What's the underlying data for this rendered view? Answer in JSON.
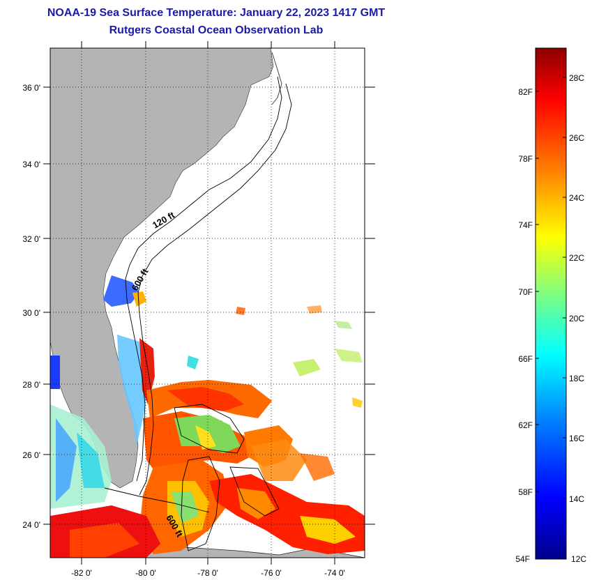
{
  "header": {
    "title": "NOAA-19 Sea Surface Temperature:  January 22, 2023 1417 GMT",
    "subtitle": "Rutgers Coastal Ocean Observation Lab"
  },
  "map": {
    "lat_labels": [
      "36 0'",
      "34 0'",
      "32 0'",
      "30 0'",
      "28 0'",
      "26 0'",
      "24 0'"
    ],
    "lon_labels": [
      "-82 0'",
      "-80 0'",
      "-78 0'",
      "-76 0'",
      "-74 0'"
    ],
    "contours": {
      "c120": "120 ft",
      "c600a": "600 ft",
      "c600b": "600 ft"
    },
    "colors": {
      "land": "#b4b4b4",
      "ocean_nodata": "#ffffff",
      "grid": "#000000"
    }
  },
  "colorbar": {
    "fahrenheit": [
      "82F",
      "78F",
      "74F",
      "70F",
      "66F",
      "62F",
      "58F",
      "54F"
    ],
    "celsius": [
      "28C",
      "26C",
      "24C",
      "22C",
      "20C",
      "18C",
      "16C",
      "14C",
      "12C"
    ],
    "gradient": [
      "#00008b",
      "#0000ff",
      "#0080ff",
      "#00ffff",
      "#80ff80",
      "#ffff00",
      "#ff8000",
      "#ff0000",
      "#8b0000"
    ]
  }
}
